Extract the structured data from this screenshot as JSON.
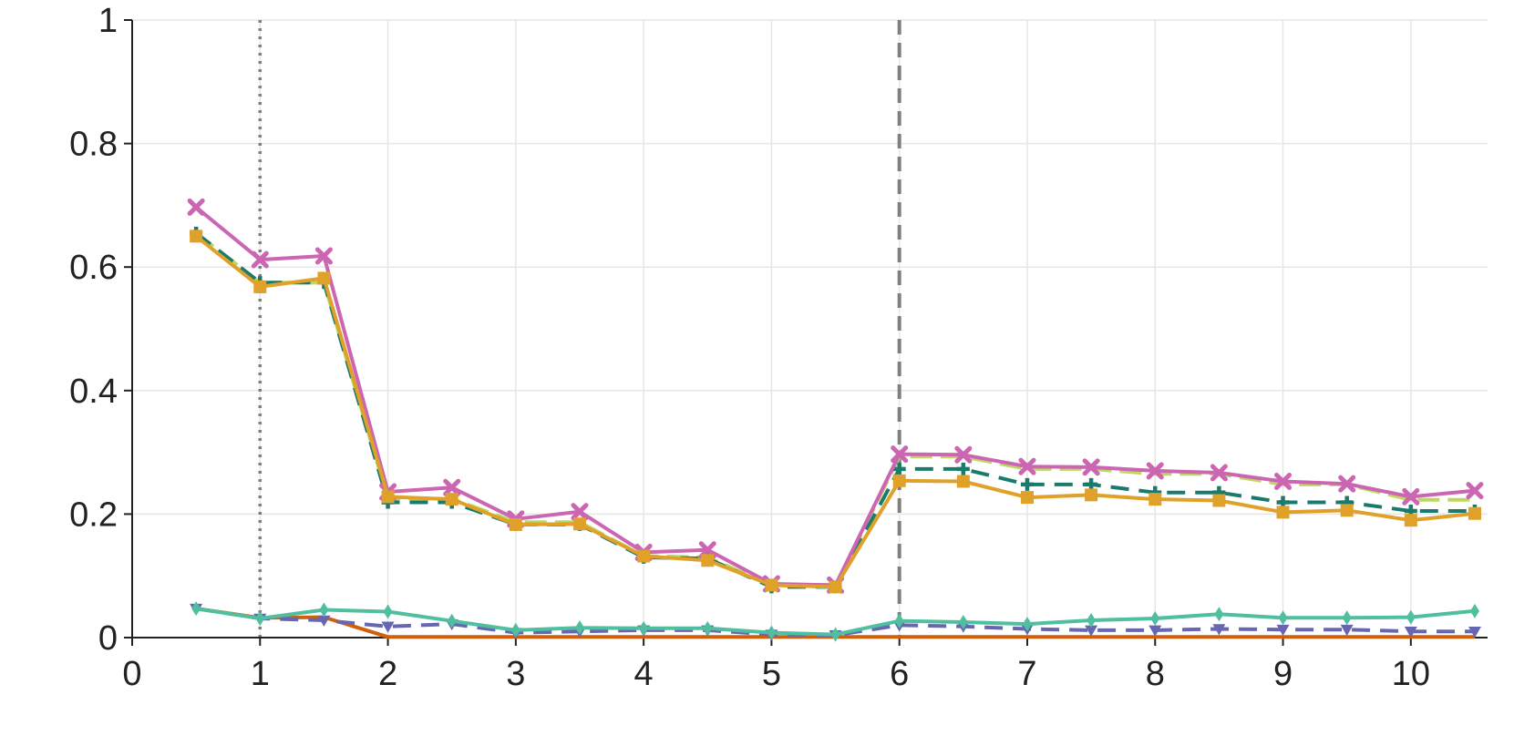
{
  "chart_data": {
    "type": "line",
    "title": "",
    "xlabel": "",
    "ylabel": "",
    "xlim": [
      0,
      10.6
    ],
    "ylim": [
      0,
      1
    ],
    "x_ticks": [
      "0",
      "1",
      "2",
      "3",
      "4",
      "5",
      "6",
      "7",
      "8",
      "9",
      "10"
    ],
    "y_ticks": [
      "0",
      "0.2",
      "0.4",
      "0.6",
      "0.8",
      "1"
    ],
    "grid": true,
    "legend": "none",
    "reference_lines": [
      {
        "x": 1,
        "style": "dotted",
        "color": "#7f7f7f"
      },
      {
        "x": 6,
        "style": "dashed",
        "color": "#7f7f7f"
      }
    ],
    "x": [
      0.5,
      1,
      1.5,
      2,
      2.5,
      3,
      3.5,
      4,
      4.5,
      5,
      5.5,
      6,
      6.5,
      7,
      7.5,
      8,
      8.5,
      9,
      9.5,
      10,
      10.5
    ],
    "series": [
      {
        "color": "#bcd85f",
        "dash": "long-dash",
        "marker": "none",
        "values": [
          0.655,
          0.575,
          0.575,
          0.225,
          0.225,
          0.187,
          0.187,
          0.132,
          0.13,
          0.085,
          0.082,
          0.293,
          0.293,
          0.273,
          0.273,
          0.265,
          0.265,
          0.248,
          0.248,
          0.223,
          0.223
        ]
      },
      {
        "color": "#1b7a6e",
        "dash": "dashed",
        "marker": "plus",
        "values": [
          0.655,
          0.575,
          0.575,
          0.219,
          0.219,
          0.183,
          0.183,
          0.13,
          0.128,
          0.082,
          0.082,
          0.273,
          0.273,
          0.248,
          0.248,
          0.235,
          0.235,
          0.219,
          0.219,
          0.205,
          0.205
        ]
      },
      {
        "color": "#cc66b3",
        "dash": "solid",
        "marker": "x",
        "values": [
          0.697,
          0.612,
          0.618,
          0.236,
          0.243,
          0.192,
          0.204,
          0.138,
          0.142,
          0.087,
          0.085,
          0.297,
          0.296,
          0.277,
          0.276,
          0.27,
          0.267,
          0.253,
          0.249,
          0.228,
          0.238
        ]
      },
      {
        "color": "#e0a12a",
        "dash": "solid",
        "marker": "square",
        "values": [
          0.65,
          0.568,
          0.582,
          0.228,
          0.224,
          0.183,
          0.184,
          0.132,
          0.125,
          0.085,
          0.082,
          0.254,
          0.253,
          0.227,
          0.231,
          0.224,
          0.222,
          0.203,
          0.206,
          0.19,
          0.201
        ]
      },
      {
        "color": "#d45f0a",
        "dash": "solid",
        "marker": "none",
        "values": [
          0.047,
          0.032,
          0.033,
          0.001,
          0.001,
          0.001,
          0.001,
          0.001,
          0.001,
          0.001,
          0.001,
          0.001,
          0.001,
          0.001,
          0.001,
          0.001,
          0.001,
          0.001,
          0.001,
          0.001,
          0.001
        ]
      },
      {
        "color": "#6666b3",
        "dash": "dashed",
        "marker": "triangle-down",
        "values": [
          0.047,
          0.031,
          0.028,
          0.018,
          0.022,
          0.008,
          0.01,
          0.012,
          0.012,
          0.005,
          0.004,
          0.02,
          0.018,
          0.014,
          0.012,
          0.012,
          0.014,
          0.013,
          0.013,
          0.01,
          0.01
        ]
      },
      {
        "color": "#4fbf9f",
        "dash": "solid",
        "marker": "thin-diamond",
        "values": [
          0.047,
          0.031,
          0.045,
          0.042,
          0.027,
          0.012,
          0.016,
          0.015,
          0.015,
          0.008,
          0.005,
          0.027,
          0.025,
          0.022,
          0.028,
          0.031,
          0.038,
          0.032,
          0.032,
          0.033,
          0.043
        ]
      }
    ]
  }
}
